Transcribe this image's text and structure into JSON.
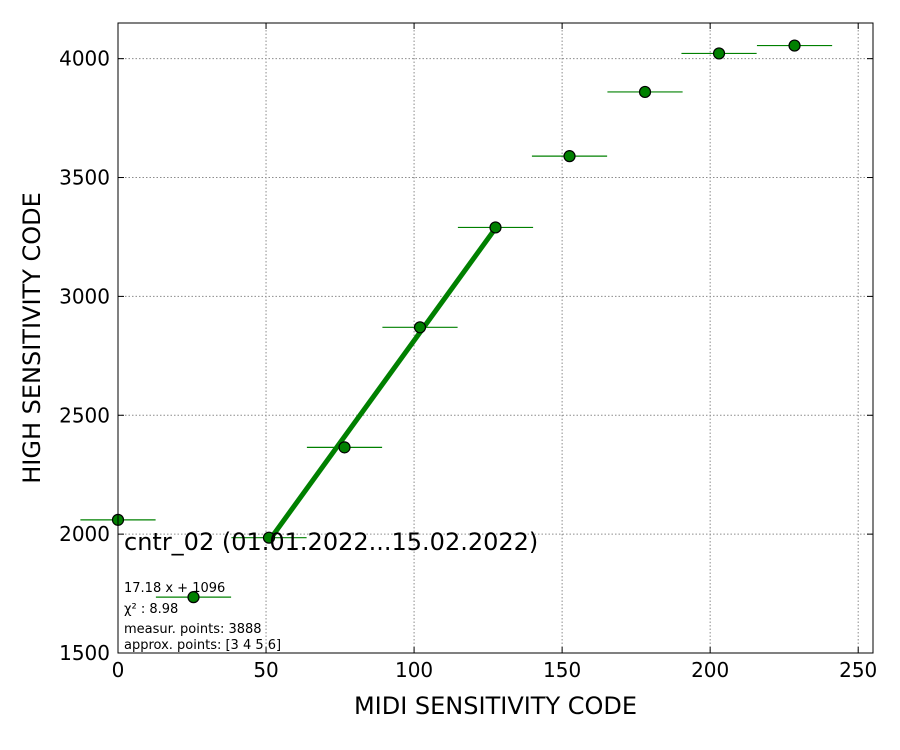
{
  "chart_data": {
    "type": "scatter",
    "title": "cntr_02 (01.01.2022...15.02.2022)",
    "xlabel": "MIDI SENSITIVITY CODE",
    "ylabel": "HIGH SENSITIVITY CODE",
    "xlim": [
      0,
      255
    ],
    "ylim": [
      1500,
      4150
    ],
    "xticks": [
      0,
      50,
      100,
      150,
      200,
      250
    ],
    "yticks": [
      1500,
      2000,
      2500,
      3000,
      3500,
      4000
    ],
    "grid": true,
    "series": [
      {
        "type": "errorbar",
        "x": [
          0,
          25.5,
          51,
          76.5,
          102,
          127.5,
          152.5,
          178,
          203,
          228.5
        ],
        "y": [
          2060,
          1735,
          1985,
          2365,
          2870,
          3290,
          3590,
          3860,
          4022,
          4055
        ],
        "xerr": 12.7,
        "color": "#008000"
      },
      {
        "type": "fit-line",
        "x": [
          51,
          127
        ],
        "y": [
          1972,
          3278
        ],
        "color": "#008000"
      }
    ],
    "annotations": [
      "17.18 x + 1096",
      "χ² : 8.98",
      "measur. points: 3888",
      "approx. points: [3 4 5 6]"
    ]
  }
}
